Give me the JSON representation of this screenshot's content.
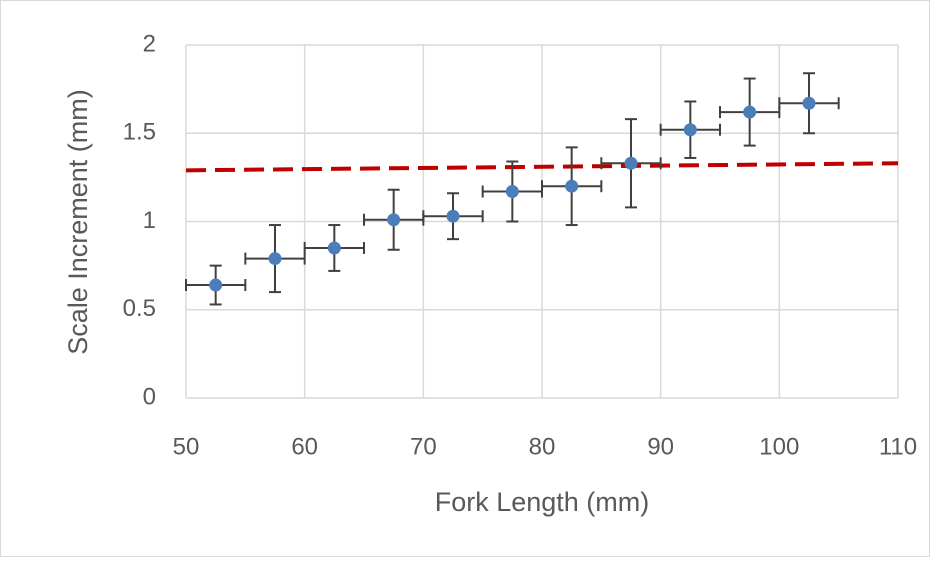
{
  "chart_data": {
    "type": "scatter",
    "x_label": "Fork Length (mm)",
    "y_label": "Scale Increment (mm)",
    "xlim": [
      50,
      110
    ],
    "xticks": [
      50,
      60,
      70,
      80,
      90,
      100,
      110
    ],
    "ylim": [
      0,
      2
    ],
    "yticks": [
      0,
      0.5,
      1,
      1.5,
      2
    ],
    "grid": true,
    "series": [
      {
        "type": "scatter",
        "color": "#4a7ebb",
        "x": [
          52.5,
          57.5,
          62.5,
          67.5,
          72.5,
          77.5,
          82.5,
          87.5,
          92.5,
          97.5,
          102.5
        ],
        "values": [
          0.64,
          0.79,
          0.85,
          1.01,
          1.03,
          1.17,
          1.2,
          1.33,
          1.52,
          1.62,
          1.67
        ],
        "xerr": [
          2.5,
          2.5,
          2.5,
          2.5,
          2.5,
          2.5,
          2.5,
          2.5,
          2.5,
          2.5,
          2.5
        ],
        "yerr": [
          0.11,
          0.19,
          0.13,
          0.17,
          0.13,
          0.17,
          0.22,
          0.25,
          0.16,
          0.19,
          0.17
        ],
        "error_color": "#404040"
      },
      {
        "type": "line",
        "color": "#c00000",
        "dashed": true,
        "x": [
          50,
          110
        ],
        "values": [
          1.29,
          1.33
        ]
      }
    ]
  }
}
